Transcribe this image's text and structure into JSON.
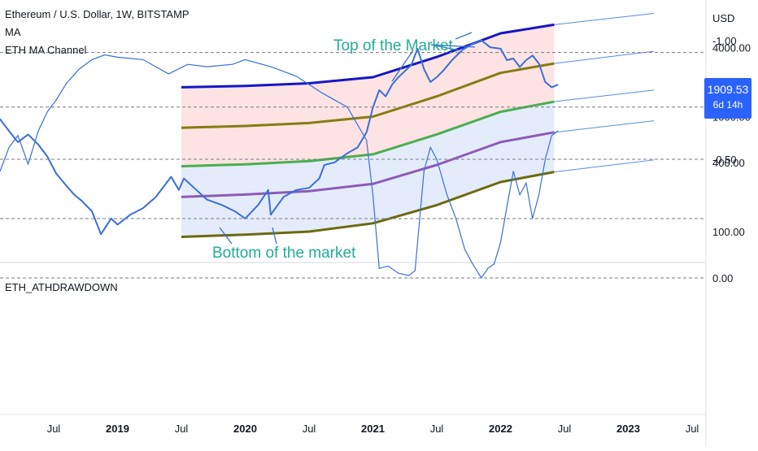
{
  "legend": {
    "line1": "Ethereum / U.S. Dollar, 1W, BITSTAMP",
    "line2": "MA",
    "line3": "ETH MA Channel"
  },
  "annotations": {
    "top": "Top of the Market",
    "bottom": "Bottom of the market"
  },
  "price_badge": {
    "price": "1909.53",
    "countdown": "6d 14h"
  },
  "indicator": {
    "name": "ETH_ATHDRAWDOWN"
  },
  "colors": {
    "price": "#3a6fd8",
    "ma_top": "#1515c8",
    "ma_2": "#8a7a10",
    "ma_mid": "#4caf50",
    "ma_4": "#8e5bb8",
    "ma_bottom": "#6b6a10",
    "upper_fill": "#fde3e3",
    "lower_fill": "#e4ecfc",
    "dd_red": "#f9c5c5",
    "dd_blue": "#a9c1f7"
  },
  "chart_data": [
    {
      "type": "line",
      "scale": "log",
      "currency": "USD",
      "y_ticks": [
        {
          "value": 4000,
          "label": "4000.00"
        },
        {
          "value": 1000,
          "label": "1000.00"
        },
        {
          "value": 400,
          "label": "400.00"
        },
        {
          "value": 100,
          "label": "100.00"
        }
      ],
      "x_ticks": [
        {
          "t": 2018.5,
          "label": "Jul",
          "bold": false
        },
        {
          "t": 2019.0,
          "label": "2019",
          "bold": true
        },
        {
          "t": 2019.5,
          "label": "Jul",
          "bold": false
        },
        {
          "t": 2020.0,
          "label": "2020",
          "bold": true
        },
        {
          "t": 2020.5,
          "label": "Jul",
          "bold": false
        },
        {
          "t": 2021.0,
          "label": "2021",
          "bold": true
        },
        {
          "t": 2021.5,
          "label": "Jul",
          "bold": false
        },
        {
          "t": 2022.0,
          "label": "2022",
          "bold": true
        },
        {
          "t": 2022.5,
          "label": "Jul",
          "bold": false
        },
        {
          "t": 2023.0,
          "label": "2023",
          "bold": true
        },
        {
          "t": 2023.5,
          "label": "Jul",
          "bold": false
        }
      ],
      "series": [
        {
          "key": "price",
          "x": [
            2018.0,
            2018.08,
            2018.15,
            2018.22,
            2018.3,
            2018.38,
            2018.45,
            2018.52,
            2018.6,
            2018.66,
            2018.72,
            2018.8,
            2018.87,
            2018.95,
            2019.0,
            2019.1,
            2019.2,
            2019.3,
            2019.42,
            2019.48,
            2019.52,
            2019.6,
            2019.7,
            2019.82,
            2019.92,
            2020.0,
            2020.1,
            2020.18,
            2020.2,
            2020.3,
            2020.4,
            2020.5,
            2020.58,
            2020.62,
            2020.7,
            2020.8,
            2020.88,
            2020.95,
            2021.0,
            2021.05,
            2021.1,
            2021.15,
            2021.2,
            2021.3,
            2021.35,
            2021.4,
            2021.45,
            2021.5,
            2021.55,
            2021.62,
            2021.7,
            2021.78,
            2021.85,
            2021.92,
            2022.0,
            2022.05,
            2022.1,
            2022.15,
            2022.2,
            2022.25,
            2022.3,
            2022.35,
            2022.4,
            2022.45
          ],
          "y": [
            850,
            950,
            750,
            600,
            700,
            570,
            450,
            320,
            250,
            210,
            185,
            150,
            95,
            130,
            115,
            140,
            160,
            200,
            300,
            230,
            290,
            240,
            190,
            170,
            150,
            130,
            170,
            230,
            140,
            200,
            230,
            240,
            290,
            380,
            400,
            480,
            540,
            730,
            1200,
            1700,
            1500,
            1900,
            2200,
            2800,
            3900,
            2600,
            2000,
            2200,
            2500,
            3100,
            3800,
            4300,
            4600,
            4000,
            3900,
            3100,
            3200,
            2700,
            3100,
            3400,
            2900,
            2000,
            1800,
            1900
          ]
        },
        {
          "key": "ma_top",
          "x": [
            2019.5,
            2020.0,
            2020.5,
            2021.0,
            2021.5,
            2022.0,
            2022.42
          ],
          "y": [
            1800,
            1850,
            1950,
            2200,
            3300,
            5300,
            6300
          ]
        },
        {
          "key": "ma_2",
          "x": [
            2019.5,
            2020.0,
            2020.5,
            2021.0,
            2021.5,
            2022.0,
            2022.42
          ],
          "y": [
            800,
            830,
            880,
            1000,
            1500,
            2400,
            2900
          ]
        },
        {
          "key": "ma_mid",
          "x": [
            2019.5,
            2020.0,
            2020.5,
            2021.0,
            2021.5,
            2022.0,
            2022.42
          ],
          "y": [
            370,
            385,
            410,
            470,
            700,
            1100,
            1350
          ]
        },
        {
          "key": "ma_4",
          "x": [
            2019.5,
            2020.0,
            2020.5,
            2021.0,
            2021.5,
            2022.0,
            2022.42
          ],
          "y": [
            200,
            210,
            225,
            260,
            380,
            600,
            730
          ]
        },
        {
          "key": "ma_bottom",
          "x": [
            2019.5,
            2020.0,
            2020.5,
            2021.0,
            2021.5,
            2022.0,
            2022.42
          ],
          "y": [
            90,
            94,
            100,
            118,
            170,
            270,
            330
          ]
        }
      ],
      "projections": [
        {
          "from": [
            2022.42,
            6300
          ],
          "to": [
            2023.2,
            7900
          ]
        },
        {
          "from": [
            2022.42,
            2900
          ],
          "to": [
            2023.2,
            3700
          ]
        },
        {
          "from": [
            2022.42,
            1350
          ],
          "to": [
            2023.2,
            1700
          ]
        },
        {
          "from": [
            2022.42,
            730
          ],
          "to": [
            2023.2,
            920
          ]
        },
        {
          "from": [
            2022.42,
            330
          ],
          "to": [
            2023.2,
            420
          ]
        }
      ]
    },
    {
      "type": "line",
      "name": "ETH_ATHDRAWDOWN",
      "ylim": [
        -1.0,
        0.0
      ],
      "y_ticks": [
        {
          "value": 0.0,
          "label": "0.00"
        },
        {
          "value": -0.5,
          "label": "-0.50"
        },
        {
          "value": -1.0,
          "label": "-1.00"
        }
      ],
      "bands": [
        {
          "from": -0.25,
          "to": 0.0,
          "key": "dd_red"
        },
        {
          "from": -0.95,
          "to": -0.72,
          "key": "dd_blue"
        }
      ],
      "x": [
        2018.0,
        2018.08,
        2018.15,
        2018.22,
        2018.3,
        2018.38,
        2018.45,
        2018.52,
        2018.6,
        2018.7,
        2018.8,
        2018.9,
        2019.0,
        2019.2,
        2019.4,
        2019.55,
        2019.7,
        2019.9,
        2020.0,
        2020.2,
        2020.4,
        2020.6,
        2020.8,
        2020.95,
        2021.0,
        2021.05,
        2021.12,
        2021.2,
        2021.28,
        2021.33,
        2021.4,
        2021.45,
        2021.5,
        2021.58,
        2021.65,
        2021.72,
        2021.78,
        2021.85,
        2021.9,
        2021.95,
        2022.0,
        2022.05,
        2022.1,
        2022.15,
        2022.2,
        2022.25,
        2022.3,
        2022.35,
        2022.4,
        2022.45
      ],
      "values": [
        -0.38,
        -0.45,
        -0.55,
        -0.6,
        -0.48,
        -0.62,
        -0.7,
        -0.75,
        -0.82,
        -0.88,
        -0.92,
        -0.94,
        -0.93,
        -0.92,
        -0.86,
        -0.9,
        -0.89,
        -0.9,
        -0.92,
        -0.89,
        -0.85,
        -0.78,
        -0.72,
        -0.58,
        -0.35,
        -0.04,
        -0.05,
        -0.02,
        -0.01,
        -0.03,
        -0.45,
        -0.55,
        -0.5,
        -0.35,
        -0.25,
        -0.12,
        -0.06,
        -0.0,
        -0.04,
        -0.06,
        -0.15,
        -0.3,
        -0.45,
        -0.35,
        -0.4,
        -0.25,
        -0.35,
        -0.5,
        -0.6,
        -0.62
      ]
    }
  ]
}
